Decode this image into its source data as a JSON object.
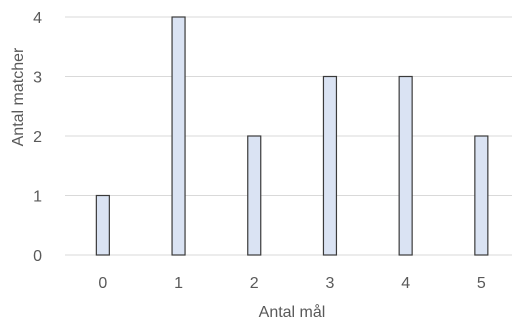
{
  "chart_data": {
    "type": "bar",
    "title": "",
    "xlabel": "Antal mål",
    "ylabel": "Antal matcher",
    "categories": [
      "0",
      "1",
      "2",
      "3",
      "4",
      "5"
    ],
    "values": [
      1,
      4,
      2,
      3,
      3,
      2
    ],
    "ylim": [
      0,
      4
    ],
    "yticks": [
      "0",
      "1",
      "2",
      "3",
      "4"
    ],
    "grid": true,
    "legend": "none",
    "colors": {
      "bar_fill": "#dae3f3",
      "bar_stroke": "#3a3a3a",
      "grid": "#d9d9d9",
      "text": "#595959"
    }
  }
}
